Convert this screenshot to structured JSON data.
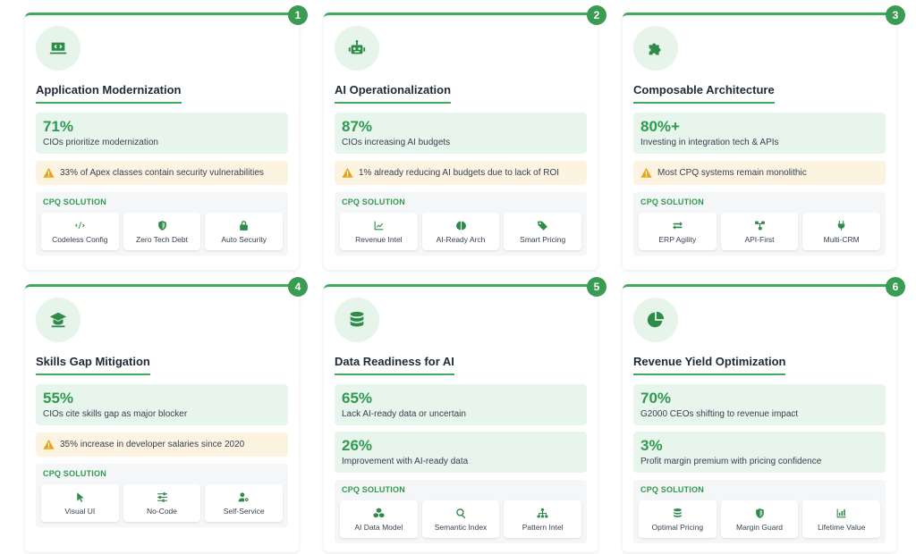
{
  "cards": [
    {
      "number": "1",
      "icon": "laptop-code-icon",
      "title": "Application Modernization",
      "stats": [
        {
          "value": "71%",
          "label": "CIOs prioritize modernization"
        }
      ],
      "warning": "33% of Apex classes contain security vulnerabilities",
      "solution_label": "CPQ SOLUTION",
      "features": [
        {
          "icon": "code-icon",
          "label": "Codeless Config"
        },
        {
          "icon": "shield-icon",
          "label": "Zero Tech Debt"
        },
        {
          "icon": "lock-icon",
          "label": "Auto Security"
        }
      ]
    },
    {
      "number": "2",
      "icon": "robot-icon",
      "title": "AI Operationalization",
      "stats": [
        {
          "value": "87%",
          "label": "CIOs increasing AI budgets"
        }
      ],
      "warning": "1% already reducing AI budgets due to lack of ROI",
      "solution_label": "CPQ SOLUTION",
      "features": [
        {
          "icon": "line-chart-icon",
          "label": "Revenue Intel"
        },
        {
          "icon": "brain-icon",
          "label": "AI-Ready Arch"
        },
        {
          "icon": "tag-icon",
          "label": "Smart Pricing"
        }
      ]
    },
    {
      "number": "3",
      "icon": "puzzle-icon",
      "title": "Composable Architecture",
      "stats": [
        {
          "value": "80%+",
          "label": "Investing in integration tech & APIs"
        }
      ],
      "warning": "Most CPQ systems remain monolithic",
      "solution_label": "CPQ SOLUTION",
      "features": [
        {
          "icon": "exchange-icon",
          "label": "ERP Agility"
        },
        {
          "icon": "network-icon",
          "label": "API-First"
        },
        {
          "icon": "plug-icon",
          "label": "Multi-CRM"
        }
      ]
    },
    {
      "number": "4",
      "icon": "graduate-icon",
      "title": "Skills Gap Mitigation",
      "stats": [
        {
          "value": "55%",
          "label": "CIOs cite skills gap as major blocker"
        }
      ],
      "warning": "35% increase in developer salaries since 2020",
      "solution_label": "CPQ SOLUTION",
      "features": [
        {
          "icon": "pointer-icon",
          "label": "Visual UI"
        },
        {
          "icon": "sliders-icon",
          "label": "No-Code"
        },
        {
          "icon": "user-gear-icon",
          "label": "Self-Service"
        }
      ]
    },
    {
      "number": "5",
      "icon": "database-icon",
      "title": "Data Readiness for AI",
      "stats": [
        {
          "value": "65%",
          "label": "Lack AI-ready data or uncertain"
        },
        {
          "value": "26%",
          "label": "Improvement with AI-ready data"
        }
      ],
      "warning": "",
      "solution_label": "CPQ SOLUTION",
      "features": [
        {
          "icon": "cubes-icon",
          "label": "AI Data Model"
        },
        {
          "icon": "search-icon",
          "label": "Semantic Index"
        },
        {
          "icon": "sitemap-icon",
          "label": "Pattern Intel"
        }
      ]
    },
    {
      "number": "6",
      "icon": "pie-chart-icon",
      "title": "Revenue Yield Optimization",
      "stats": [
        {
          "value": "70%",
          "label": "G2000 CEOs shifting to revenue impact"
        },
        {
          "value": "3%",
          "label": "Profit margin premium with pricing confidence"
        }
      ],
      "warning": "",
      "solution_label": "CPQ SOLUTION",
      "features": [
        {
          "icon": "coins-icon",
          "label": "Optimal Pricing"
        },
        {
          "icon": "shield-icon",
          "label": "Margin Guard"
        },
        {
          "icon": "bar-chart-icon",
          "label": "Lifetime Value"
        }
      ]
    }
  ],
  "colors": {
    "accent": "#3daa5c",
    "stat_bg": "#e8f5ec",
    "warning_bg": "#fdf3e1",
    "warning_icon": "#e8a317"
  }
}
